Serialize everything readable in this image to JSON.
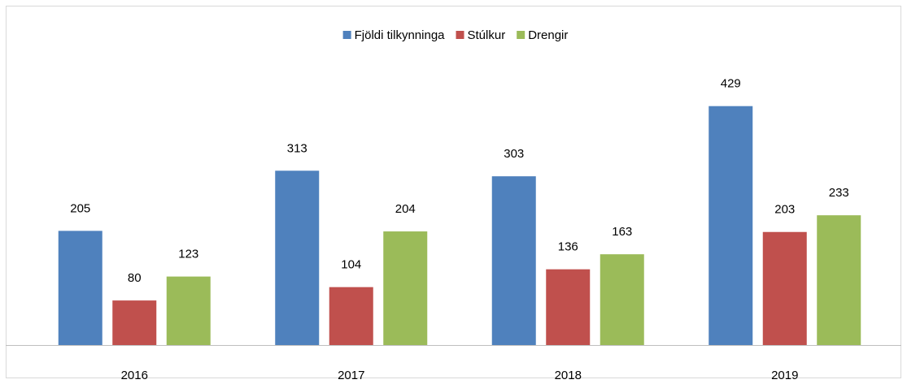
{
  "chart_data": {
    "type": "bar",
    "categories": [
      "2016",
      "2017",
      "2018",
      "2019"
    ],
    "series": [
      {
        "name": "Fjöldi tilkynninga",
        "color": "#4f81bd",
        "values": [
          205,
          313,
          303,
          429
        ]
      },
      {
        "name": "Stúlkur",
        "color": "#c0504d",
        "values": [
          80,
          104,
          136,
          203
        ]
      },
      {
        "name": "Drengir",
        "color": "#9bbb59",
        "values": [
          123,
          204,
          163,
          233
        ]
      }
    ],
    "legend": "top"
  }
}
